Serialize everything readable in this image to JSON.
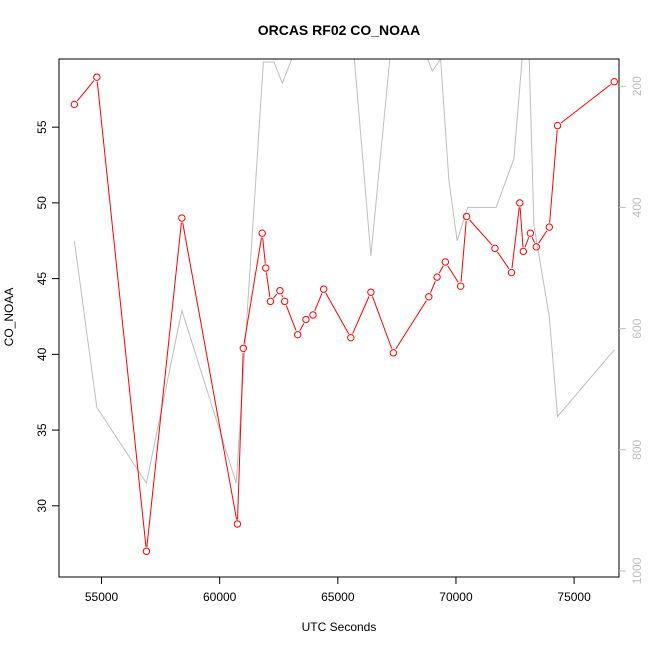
{
  "chart_data": {
    "type": "line",
    "title": "ORCAS RF02 CO_NOAA",
    "xlabel": "UTC Seconds",
    "ylabel": "CO_NOAA",
    "xlim": [
      53200,
      76900
    ],
    "ylim": [
      25.3,
      59.5
    ],
    "x_ticks": [
      55000,
      60000,
      65000,
      70000,
      75000
    ],
    "y_ticks": [
      30,
      35,
      40,
      45,
      50,
      55
    ],
    "y2lim": [
      1010,
      155
    ],
    "y2_ticks": [
      200,
      400,
      600,
      800,
      1000
    ],
    "series": [
      {
        "role": "primary",
        "color": "#ff0000",
        "marker": "open-circle",
        "points": [
          [
            53850,
            56.5
          ],
          [
            54800,
            58.3
          ],
          [
            56900,
            27.0
          ],
          [
            58400,
            49.0
          ],
          [
            60750,
            28.8
          ],
          [
            61000,
            40.4
          ],
          [
            61800,
            48.0
          ],
          [
            61950,
            45.7
          ],
          [
            62150,
            43.5
          ],
          [
            62550,
            44.2
          ],
          [
            62750,
            43.5
          ],
          [
            63300,
            41.3
          ],
          [
            63650,
            42.3
          ],
          [
            63950,
            42.6
          ],
          [
            64400,
            44.3
          ],
          [
            65550,
            41.1
          ],
          [
            66400,
            44.1
          ],
          [
            67350,
            40.1
          ],
          [
            68850,
            43.8
          ],
          [
            69200,
            45.1
          ],
          [
            69550,
            46.1
          ],
          [
            70200,
            44.5
          ],
          [
            70450,
            49.1
          ],
          [
            71650,
            47.0
          ],
          [
            72350,
            45.4
          ],
          [
            72700,
            50.0
          ],
          [
            72850,
            46.8
          ],
          [
            73150,
            48.0
          ],
          [
            73400,
            47.1
          ],
          [
            73950,
            48.4
          ],
          [
            74300,
            55.1
          ],
          [
            76700,
            58.0
          ]
        ]
      },
      {
        "role": "secondary",
        "color": "#bebebe",
        "axis": "right",
        "points": [
          [
            53850,
            455
          ],
          [
            54800,
            730
          ],
          [
            56900,
            855
          ],
          [
            58400,
            570
          ],
          [
            60700,
            855
          ],
          [
            61850,
            160
          ],
          [
            62300,
            160
          ],
          [
            62650,
            195
          ],
          [
            63050,
            155
          ],
          [
            64300,
            155
          ],
          [
            64600,
            150
          ],
          [
            65700,
            155
          ],
          [
            66400,
            480
          ],
          [
            67200,
            155
          ],
          [
            68800,
            155
          ],
          [
            69000,
            175
          ],
          [
            69350,
            155
          ],
          [
            69700,
            355
          ],
          [
            70050,
            455
          ],
          [
            70500,
            400
          ],
          [
            71700,
            400
          ],
          [
            72450,
            320
          ],
          [
            72800,
            155
          ],
          [
            73100,
            155
          ],
          [
            73300,
            430
          ],
          [
            73950,
            580
          ],
          [
            74300,
            745
          ],
          [
            76700,
            635
          ]
        ]
      }
    ]
  }
}
